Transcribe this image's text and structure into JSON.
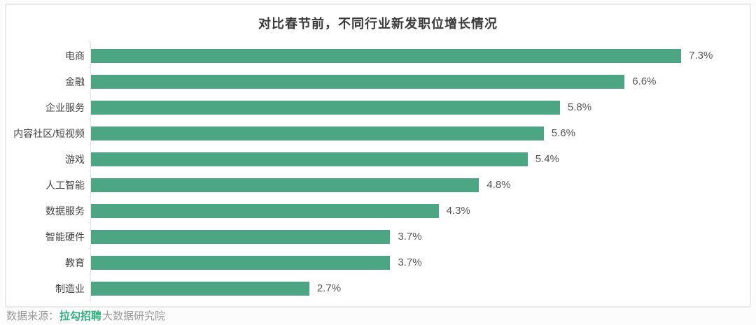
{
  "chart_data": {
    "type": "bar",
    "orientation": "horizontal",
    "title": "对比春节前，不同行业新发职位增长情况",
    "categories": [
      "电商",
      "金融",
      "企业服务",
      "内容社区/短视频",
      "游戏",
      "人工智能",
      "数据服务",
      "智能硬件",
      "教育",
      "制造业"
    ],
    "values": [
      7.3,
      6.6,
      5.8,
      5.6,
      5.4,
      4.8,
      4.3,
      3.7,
      3.7,
      2.7
    ],
    "value_labels": [
      "7.3%",
      "6.6%",
      "5.8%",
      "5.6%",
      "5.4%",
      "4.8%",
      "4.3%",
      "3.7%",
      "3.7%",
      "2.7%"
    ],
    "xlabel": "",
    "ylabel": "",
    "xlim": [
      0,
      7.8
    ],
    "grid": false,
    "legend": "none",
    "bar_color": "#4ca583",
    "value_label_position": "end-of-bar"
  },
  "footer": {
    "prefix": "数据来源：",
    "brand": "拉勾招聘",
    "suffix": "大数据研究院"
  },
  "colors": {
    "bar": "#4ca583",
    "brand_green": "#2fb07e",
    "title_text": "#3a3a3a",
    "category_text": "#454545",
    "value_text": "#555555",
    "footer_text": "#9a9a9a",
    "card_border": "#eaeaea",
    "axis_line": "#e3e3e3"
  }
}
